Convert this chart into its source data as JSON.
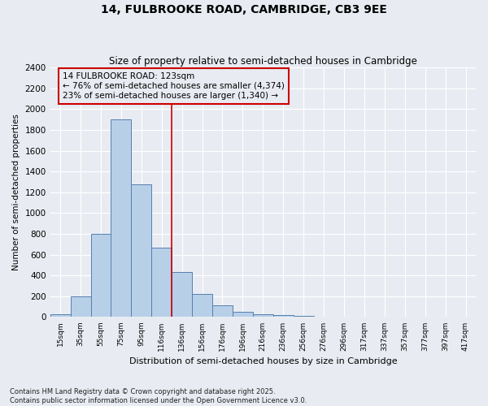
{
  "title1": "14, FULBROOKE ROAD, CAMBRIDGE, CB3 9EE",
  "title2": "Size of property relative to semi-detached houses in Cambridge",
  "xlabel": "Distribution of semi-detached houses by size in Cambridge",
  "ylabel": "Number of semi-detached properties",
  "footnote1": "Contains HM Land Registry data © Crown copyright and database right 2025.",
  "footnote2": "Contains public sector information licensed under the Open Government Licence v3.0.",
  "bin_labels": [
    "15sqm",
    "35sqm",
    "55sqm",
    "75sqm",
    "95sqm",
    "116sqm",
    "136sqm",
    "156sqm",
    "176sqm",
    "196sqm",
    "216sqm",
    "236sqm",
    "256sqm",
    "276sqm",
    "296sqm",
    "317sqm",
    "337sqm",
    "357sqm",
    "377sqm",
    "397sqm",
    "417sqm"
  ],
  "bar_values": [
    30,
    200,
    800,
    1900,
    1280,
    670,
    430,
    220,
    110,
    50,
    30,
    20,
    10,
    5,
    5,
    3,
    2,
    1,
    0,
    0,
    0
  ],
  "bar_color": "#b8cfe8",
  "bar_edge_color": "#5580b0",
  "property_line_x": 5.5,
  "property_line_color": "#cc0000",
  "annotation_title": "14 FULBROOKE ROAD: 123sqm",
  "annotation_line1": "← 76% of semi-detached houses are smaller (4,374)",
  "annotation_line2": "23% of semi-detached houses are larger (1,340) →",
  "annotation_box_color": "#cc0000",
  "ylim": [
    0,
    2400
  ],
  "yticks": [
    0,
    200,
    400,
    600,
    800,
    1000,
    1200,
    1400,
    1600,
    1800,
    2000,
    2200,
    2400
  ],
  "background_color": "#e8ecf2",
  "grid_color": "#ffffff",
  "plot_bg_color": "#dde4ee"
}
